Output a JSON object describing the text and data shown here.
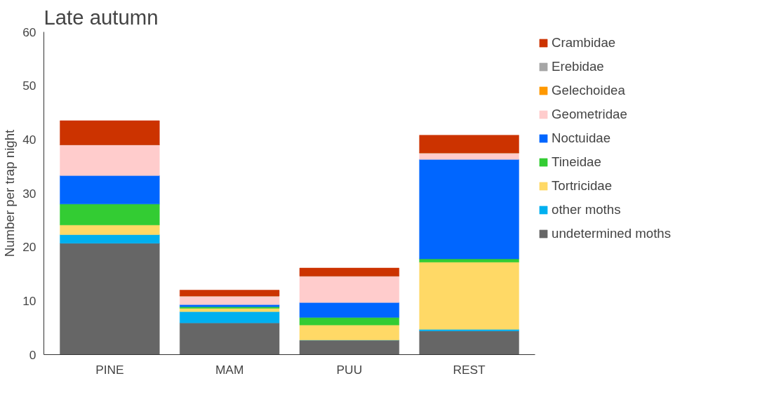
{
  "chart_data": {
    "type": "bar",
    "stacked": true,
    "title": "Late autumn",
    "ylabel": "Number per trap night",
    "categories": [
      "PINE",
      "MAM",
      "PUU",
      "REST"
    ],
    "ylim": [
      0,
      60
    ],
    "yticks": [
      0,
      10,
      20,
      30,
      40,
      50,
      60
    ],
    "grid": false,
    "legend": "right",
    "series": [
      {
        "name": "undetermined moths",
        "color": "#666666",
        "values": [
          20.7,
          5.9,
          2.7,
          4.4
        ]
      },
      {
        "name": "other moths",
        "color": "#00b0f0",
        "values": [
          1.6,
          2.1,
          0,
          0.3
        ]
      },
      {
        "name": "Tortricidae",
        "color": "#ffd966",
        "values": [
          1.8,
          0.6,
          2.8,
          12.5
        ]
      },
      {
        "name": "Tineidae",
        "color": "#33cc33",
        "values": [
          3.9,
          0.3,
          1.4,
          0.6
        ]
      },
      {
        "name": "Noctuidae",
        "color": "#0066ff",
        "values": [
          5.3,
          0.4,
          2.8,
          18.5
        ]
      },
      {
        "name": "Geometridae",
        "color": "#ffcccc",
        "values": [
          5.7,
          1.6,
          4.9,
          1.2
        ]
      },
      {
        "name": "Gelechoidea",
        "color": "#ff9900",
        "values": [
          0,
          0,
          0,
          0
        ]
      },
      {
        "name": "Erebidae",
        "color": "#a6a6a6",
        "values": [
          0,
          0,
          0,
          0
        ]
      },
      {
        "name": "Crambidae",
        "color": "#cc3300",
        "values": [
          4.5,
          1.1,
          1.5,
          3.3
        ]
      }
    ]
  }
}
